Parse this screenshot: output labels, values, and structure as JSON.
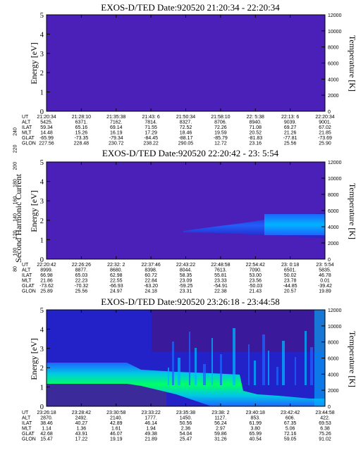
{
  "colorbar": {
    "label": "Second Harmonic Current",
    "ticks": [
      "80",
      "100",
      "120",
      "140",
      "160",
      "180",
      "200",
      "220",
      "240"
    ],
    "colors": [
      "#000000",
      "#3b0a6e",
      "#2222c8",
      "#1e64ff",
      "#00b4ff",
      "#00e6c8",
      "#00ff64",
      "#64ff00",
      "#e6f000",
      "#ffaa00",
      "#ff3c00",
      "#dc0000"
    ]
  },
  "chart_data": [
    {
      "type": "heatmap",
      "title": "EXOS-D/TED   Date:920520   21:20:34 - 22:20:34",
      "ylabel": "Energy [eV]",
      "y2label": "Temperature [K]",
      "ylim": [
        0,
        5
      ],
      "y2lim": [
        0,
        12000
      ],
      "yticks": [
        "0",
        "1",
        "2",
        "3",
        "4",
        "5"
      ],
      "y2ticks": [
        "0",
        "2000",
        "4000",
        "6000",
        "8000",
        "10000",
        "12000"
      ],
      "rows": [
        {
          "label": "UT",
          "values": [
            "21:20:34",
            "21:28:10",
            "21:35:38",
            "21:43: 6",
            "21:50:34",
            "21:58:10",
            "22: 5:38",
            "22:13: 6",
            "22:20:34"
          ]
        },
        {
          "label": "ALT",
          "values": [
            "5425.",
            "6371.",
            "7162.",
            "7814.",
            "8327.",
            "8706.",
            "8940.",
            "9039.",
            "9001."
          ]
        },
        {
          "label": "ILAT",
          "values": [
            "59.34",
            "65.16",
            "69.14",
            "71.55",
            "72.52",
            "72.26",
            "71.08",
            "69.27",
            "67.02"
          ]
        },
        {
          "label": "MLT",
          "values": [
            "14.48",
            "15.26",
            "16.19",
            "17.29",
            "18.46",
            "19.59",
            "20.52",
            "21.26",
            "21.85"
          ]
        },
        {
          "label": "GLAT",
          "values": [
            "-65.99",
            "-73.35",
            "-79.34",
            "-84.45",
            "-88.17",
            "-85.79",
            "-81.83",
            "-77.81",
            "-73.69"
          ]
        },
        {
          "label": "GLON",
          "values": [
            "227.56",
            "228.48",
            "230.72",
            "238.22",
            "290.05",
            "12.72",
            "23.16",
            "25.56",
            "25.90"
          ]
        }
      ]
    },
    {
      "type": "heatmap",
      "title": "EXOS-D/TED   Date:920520   22:20:42 - 23: 5:54",
      "ylabel": "Energy [eV]",
      "y2label": "Temperature [K]",
      "ylim": [
        0,
        5
      ],
      "y2lim": [
        0,
        12000
      ],
      "yticks": [
        "0",
        "1",
        "2",
        "3",
        "4",
        "5"
      ],
      "y2ticks": [
        "0",
        "2000",
        "4000",
        "6000",
        "8000",
        "10000",
        "12000"
      ],
      "rows": [
        {
          "label": "UT",
          "values": [
            "22:20:42",
            "22:26:26",
            "22:32: 2",
            "22:37:46",
            "22:43:22",
            "22:48:58",
            "22:54:42",
            "23: 0:18",
            "23: 5:54"
          ]
        },
        {
          "label": "ALT",
          "values": [
            "8999.",
            "8877.",
            "8680.",
            "8398.",
            "8044.",
            "7613.",
            "7090.",
            "6501.",
            "5835."
          ]
        },
        {
          "label": "ILAT",
          "values": [
            "66.98",
            "65.03",
            "62.98",
            "60.72",
            "58.35",
            "55.81",
            "53.00",
            "50.02",
            "46.78"
          ]
        },
        {
          "label": "MLT",
          "values": [
            "21.86",
            "22.23",
            "22.55",
            "22.84",
            "23.09",
            "23.33",
            "23.56",
            "23.78",
            "0.01"
          ]
        },
        {
          "label": "GLAT",
          "values": [
            "-73.62",
            "-70.32",
            "-66.93",
            "-63.20",
            "-59.25",
            "-54.91",
            "-50.03",
            "-44.85",
            "-39.42"
          ]
        },
        {
          "label": "GLON",
          "values": [
            "25.89",
            "25.56",
            "24.97",
            "24.18",
            "23.31",
            "22.38",
            "21.43",
            "20.57",
            "19.89"
          ]
        }
      ]
    },
    {
      "type": "heatmap",
      "title": "EXOS-D/TED   Date:920520   23:26:18 - 23:44:58",
      "ylabel": "Energy [eV]",
      "y2label": "Temperature [K]",
      "ylim": [
        0,
        5
      ],
      "y2lim": [
        0,
        12000
      ],
      "yticks": [
        "0",
        "1",
        "2",
        "3",
        "4",
        "5"
      ],
      "y2ticks": [
        "0",
        "2000",
        "4000",
        "6000",
        "8000",
        "10000",
        "12000"
      ],
      "rows": [
        {
          "label": "UT",
          "values": [
            "23:26:18",
            "23:28:42",
            "23:30:58",
            "23:33:22",
            "23:35:38",
            "23:38: 2",
            "23:40:18",
            "23:42:42",
            "23:44:58"
          ]
        },
        {
          "label": "ALT",
          "values": [
            "2870.",
            "2492.",
            "2140.",
            "1777.",
            "1450.",
            "1127.",
            "853.",
            "606.",
            "422."
          ]
        },
        {
          "label": "ILAT",
          "values": [
            "38.46",
            "40.27",
            "42.89",
            "46.14",
            "50.56",
            "56.24",
            "61.99",
            "67.35",
            "69.53"
          ]
        },
        {
          "label": "MLT",
          "values": [
            "1.14",
            "1.36",
            "1.61",
            "1.94",
            "2.36",
            "2.97",
            "3.80",
            "5.06",
            "6.38"
          ]
        },
        {
          "label": "GLAT",
          "values": [
            "42.68",
            "43.91",
            "46.07",
            "49.38",
            "54.04",
            "59.86",
            "65.99",
            "72.16",
            "75.26"
          ]
        },
        {
          "label": "GLON",
          "values": [
            "15.47",
            "17.22",
            "19.19",
            "21.89",
            "25.47",
            "31.26",
            "40.54",
            "59.05",
            "91.02"
          ]
        }
      ]
    }
  ]
}
